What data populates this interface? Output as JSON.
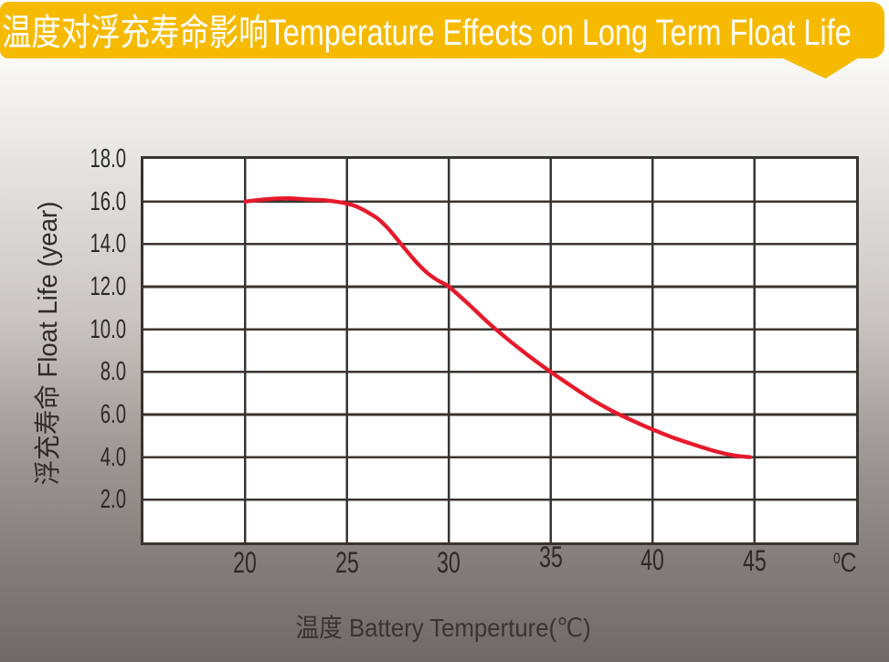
{
  "banner": {
    "text": "温度对浮充寿命影响Temperature Effects on Long Term Float Life",
    "bg_color": "#f6ba00",
    "text_color": "#ffffff"
  },
  "chart_data": {
    "type": "line",
    "title": "温度对浮充寿命影响Temperature Effects on Long Term Float Life",
    "xlabel": "温度  Battery  Temperture(℃)",
    "ylabel": "浮充寿命  Float Life (year)",
    "x_unit": {
      "sup": "0",
      "main": "C"
    },
    "xlim": [
      15,
      50
    ],
    "ylim": [
      0,
      18
    ],
    "x_ticks": [
      "20",
      "25",
      "30",
      "35",
      "40",
      "45"
    ],
    "y_ticks": [
      "18.0",
      "16.0",
      "14.0",
      "12.0",
      "10.0",
      "8.0",
      "6.0",
      "4.0",
      "2.0"
    ],
    "grid": true,
    "legend_position": "none",
    "plot_bg": "#ffffff",
    "grid_color": "#3a3430",
    "series": [
      {
        "name": "Float Life",
        "color": "#e6192a",
        "points": [
          [
            20,
            16.0
          ],
          [
            21,
            16.1
          ],
          [
            22,
            16.15
          ],
          [
            23,
            16.1
          ],
          [
            24,
            16.05
          ],
          [
            25,
            15.9
          ],
          [
            25.5,
            15.75
          ],
          [
            26,
            15.5
          ],
          [
            26.5,
            15.2
          ],
          [
            27,
            14.75
          ],
          [
            27.5,
            14.18
          ],
          [
            28,
            13.6
          ],
          [
            28.5,
            13.05
          ],
          [
            29,
            12.6
          ],
          [
            29.5,
            12.27
          ],
          [
            30,
            12.0
          ],
          [
            31,
            11.15
          ],
          [
            32,
            10.25
          ],
          [
            33,
            9.45
          ],
          [
            34,
            8.7
          ],
          [
            35,
            8.0
          ],
          [
            36,
            7.35
          ],
          [
            37,
            6.72
          ],
          [
            38,
            6.18
          ],
          [
            39,
            5.72
          ],
          [
            40,
            5.3
          ],
          [
            41,
            4.92
          ],
          [
            42,
            4.6
          ],
          [
            43,
            4.3
          ],
          [
            44,
            4.08
          ],
          [
            44.8,
            4.0
          ]
        ]
      }
    ]
  },
  "colors": {
    "page_top": "#ffffff",
    "page_bottom": "#6e6a66",
    "tick_text": "#2c2926",
    "axis_title": "#38342f"
  }
}
